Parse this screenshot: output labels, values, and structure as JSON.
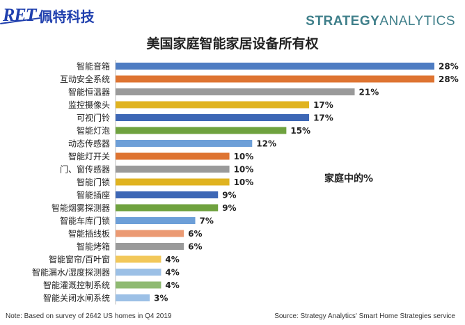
{
  "header": {
    "logo_mark": "RET",
    "logo_text": "佩特科技",
    "brand_part1": "STRATEGY",
    "brand_part2": "ANALYTICS"
  },
  "colors": {
    "blue": "#4e7cc2",
    "orange": "#de7431",
    "gray": "#9a9a9a",
    "gold": "#e0b320",
    "navy": "#3d67b5",
    "green": "#6fa23f",
    "lightblue": "#6d9fd8",
    "salmon": "#eb9a73",
    "yellow": "#f2c85a",
    "paleblue": "#9cc0e6",
    "palegreen": "#8fba72"
  },
  "chart_data": {
    "type": "bar",
    "orientation": "horizontal",
    "title": "美国家庭智能家居设备所有权",
    "unit_label": "家庭中的%",
    "categories": [
      "智能音箱",
      "互动安全系统",
      "智能恒温器",
      "监控摄像头",
      "可视门铃",
      "智能灯泡",
      "动态传感器",
      "智能灯开关",
      "门、窗传感器",
      "智能门锁",
      "智能插座",
      "智能烟雾探测器",
      "智能车库门锁",
      "智能插线板",
      "智能烤箱",
      "智能窗帘/百叶窗",
      "智能漏水/湿度探测器",
      "智能灌溉控制系统",
      "智能关闭水闸系统"
    ],
    "values": [
      28,
      28,
      21,
      17,
      17,
      15,
      12,
      10,
      10,
      10,
      9,
      9,
      7,
      6,
      6,
      4,
      4,
      4,
      3
    ],
    "labels": [
      "28%",
      "28%",
      "21%",
      "17%",
      "17%",
      "15%",
      "12%",
      "10%",
      "10%",
      "10%",
      "9%",
      "9%",
      "7%",
      "6%",
      "6%",
      "4%",
      "4%",
      "4%",
      "3%"
    ],
    "bar_colors": [
      "blue",
      "orange",
      "gray",
      "gold",
      "navy",
      "green",
      "lightblue",
      "orange",
      "gray",
      "gold",
      "navy",
      "green",
      "lightblue",
      "salmon",
      "gray",
      "yellow",
      "paleblue",
      "palegreen",
      "paleblue"
    ],
    "xlim": [
      0,
      28
    ],
    "grid": false
  },
  "footer": {
    "note": "Note: Based on survey of 2642 US homes in Q4 2019",
    "source": "Source: Strategy Analytics' Smart Home Strategies service"
  }
}
